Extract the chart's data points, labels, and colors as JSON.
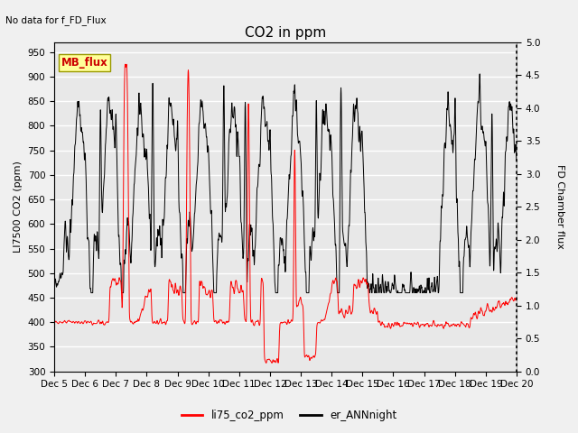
{
  "title": "CO2 in ppm",
  "ylabel_left": "LI7500 CO2 (ppm)",
  "ylabel_right": "FD Chamber flux",
  "no_data_text": "No data for f_FD_Flux",
  "mb_flux_label": "MB_flux",
  "ylim_left": [
    300,
    970
  ],
  "ylim_right": [
    0.0,
    5.0
  ],
  "yticks_left": [
    300,
    350,
    400,
    450,
    500,
    550,
    600,
    650,
    700,
    750,
    800,
    850,
    900,
    950
  ],
  "yticks_right": [
    0.0,
    0.5,
    1.0,
    1.5,
    2.0,
    2.5,
    3.0,
    3.5,
    4.0,
    4.5,
    5.0
  ],
  "xtick_labels": [
    "Dec 5",
    "Dec 6",
    "Dec 7",
    "Dec 8",
    "Dec 9",
    "Dec 10",
    "Dec 11",
    "Dec 12",
    "Dec 13",
    "Dec 14",
    "Dec 15",
    "Dec 16",
    "Dec 17",
    "Dec 18",
    "Dec 19",
    "Dec 20"
  ],
  "line_color_co2": "#ff0000",
  "line_color_ann": "#000000",
  "legend_entries": [
    "li75_co2_ppm",
    "er_ANNnight"
  ],
  "legend_colors": [
    "#ff0000",
    "#000000"
  ],
  "bg_color": "#f0f0f0",
  "plot_bg_color": "#e8e8e8",
  "grid_color": "#ffffff",
  "mb_flux_box_color": "#ffff99",
  "mb_flux_text_color": "#cc0000",
  "title_fontsize": 11,
  "label_fontsize": 8,
  "tick_fontsize": 7.5
}
